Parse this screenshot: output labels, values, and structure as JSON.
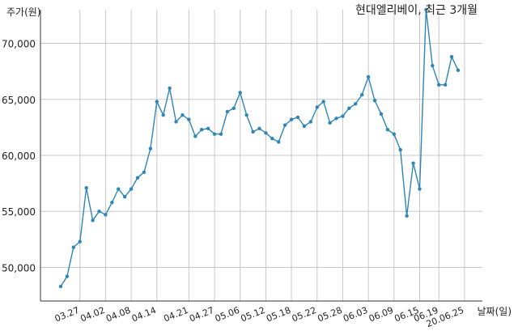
{
  "chart_data": {
    "type": "line",
    "title": "현대엘리베이, 최근 3개월",
    "ylabel": "주가(원)",
    "xlabel": "날짜(일)",
    "ylim": [
      47000,
      73000
    ],
    "yticks": [
      50000,
      55000,
      60000,
      65000,
      70000
    ],
    "ytick_labels": [
      "50,000",
      "55,000",
      "60,000",
      "65,000",
      "70,000"
    ],
    "xtick_labels": [
      "03.27",
      "04.02",
      "04.08",
      "04.14",
      "04.21",
      "04.27",
      "05.06",
      "05.12",
      "05.18",
      "05.22",
      "05.28",
      "06.03",
      "06.09",
      "06.15",
      "06.19",
      "20.06.25"
    ],
    "xtick_index": [
      3,
      7,
      11,
      15,
      20,
      24,
      28,
      32,
      36,
      40,
      44,
      48,
      52,
      56,
      59,
      63
    ],
    "grid": true,
    "line_color": "#2e86b8",
    "series": [
      {
        "name": "",
        "values": [
          48300,
          49200,
          51800,
          52300,
          57100,
          54200,
          55000,
          54700,
          55800,
          57000,
          56300,
          57000,
          58000,
          58500,
          60600,
          64800,
          63600,
          66000,
          63000,
          63600,
          63200,
          61700,
          62300,
          62400,
          61900,
          61900,
          63900,
          64200,
          65600,
          63600,
          62100,
          62400,
          62000,
          61500,
          61200,
          62700,
          63200,
          63400,
          62600,
          63000,
          64300,
          64800,
          62900,
          63300,
          63500,
          64200,
          64600,
          65400,
          67000,
          64900,
          63700,
          62300,
          61900,
          60500,
          54600,
          59300,
          57000,
          73000,
          68000,
          66300,
          66300,
          68800,
          67600
        ]
      }
    ]
  }
}
